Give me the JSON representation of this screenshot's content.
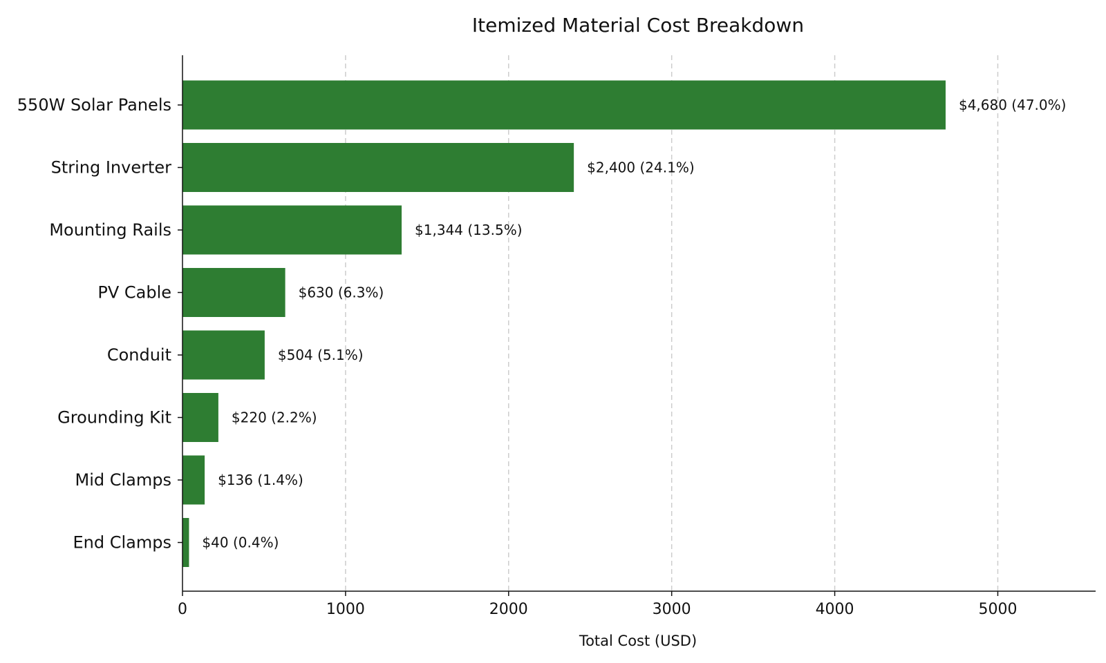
{
  "chart_data": {
    "type": "bar",
    "orientation": "horizontal",
    "title": "Itemized Material Cost Breakdown",
    "xlabel": "Total Cost (USD)",
    "ylabel": "",
    "xlim": [
      0,
      5600
    ],
    "xticks": [
      0,
      1000,
      2000,
      3000,
      4000,
      5000
    ],
    "grid": "x dashed",
    "bar_color": "#2e7d32",
    "categories": [
      "550W Solar Panels",
      "String Inverter",
      "Mounting Rails",
      "PV Cable",
      "Conduit",
      "Grounding Kit",
      "Mid Clamps",
      "End Clamps"
    ],
    "values": [
      4680,
      2400,
      1344,
      630,
      504,
      220,
      136,
      40
    ],
    "data_labels": [
      "$4,680 (47.0%)",
      "$2,400 (24.1%)",
      "$1,344 (13.5%)",
      "$630 (6.3%)",
      "$504 (5.1%)",
      "$220 (2.2%)",
      "$136 (1.4%)",
      "$40 (0.4%)"
    ]
  }
}
